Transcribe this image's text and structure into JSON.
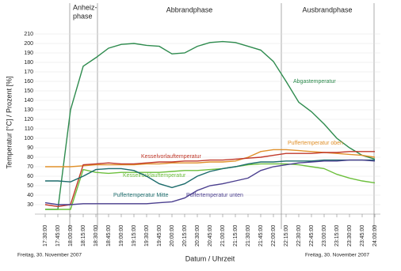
{
  "chart_data": {
    "type": "line",
    "phases": [
      [
        "Anheiz-",
        "phase"
      ],
      [
        "Abbrandphase"
      ],
      [
        "Ausbrandphase"
      ]
    ],
    "xlabel": "Datum / Uhrzeit",
    "ylabel": "Temperatur [°C] / Prozent [%]",
    "date_labels": [
      "Freitag, 30. November 2007",
      "Freitag, 30. November 2007"
    ],
    "categories": [
      "17:30:00",
      "17:45:00",
      "18:00:00",
      "18:15:00",
      "18:30:00",
      "18:45:00",
      "19:00:00",
      "19:15:00",
      "19:30:00",
      "19:45:00",
      "20:00:00",
      "20:15:00",
      "20:30:00",
      "20:45:00",
      "21:00:00",
      "21:15:00",
      "21:30:00",
      "21:45:00",
      "22:00:00",
      "22:15:00",
      "22:30:00",
      "22:45:00",
      "23:00:00",
      "23:15:00",
      "23:30:00",
      "23:45:00",
      "24:00:00"
    ],
    "ylim": [
      20,
      225
    ],
    "yticks": [
      30,
      40,
      50,
      60,
      70,
      80,
      90,
      100,
      110,
      120,
      130,
      140,
      150,
      160,
      170,
      180,
      190,
      200,
      210
    ],
    "grid": true,
    "series": [
      {
        "name": "Abgastemperatur",
        "color": "#2e8b4e",
        "values": [
          25,
          25,
          130,
          176,
          185,
          195,
          199,
          200,
          198,
          197,
          189,
          190,
          197,
          201,
          202,
          201,
          197,
          193,
          181,
          160,
          138,
          128,
          115,
          100,
          90,
          82,
          78
        ]
      },
      {
        "name": "Puffertemperatur oben",
        "color": "#e0902a",
        "values": [
          70,
          70,
          70,
          71,
          72,
          72,
          72,
          72,
          73,
          73,
          74,
          74,
          74,
          75,
          75,
          76,
          80,
          86,
          88,
          88,
          87,
          86,
          85,
          84,
          83,
          82,
          80
        ]
      },
      {
        "name": "Kesselvorlauftemperatur",
        "color": "#c0392b",
        "values": [
          30,
          28,
          30,
          72,
          73,
          74,
          73,
          73,
          74,
          75,
          75,
          76,
          76,
          77,
          77,
          78,
          79,
          80,
          82,
          84,
          84,
          84,
          85,
          85,
          86,
          86,
          86
        ]
      },
      {
        "name": "Kesselrücklauftemperatur",
        "color": "#6cbf3c",
        "values": [
          25,
          25,
          25,
          67,
          64,
          63,
          64,
          64,
          64,
          64,
          65,
          66,
          66,
          67,
          68,
          70,
          72,
          73,
          73,
          73,
          72,
          70,
          68,
          62,
          58,
          55,
          53
        ]
      },
      {
        "name": "Puffertemperatur Mitte",
        "color": "#1b6b6b",
        "values": [
          55,
          55,
          54,
          60,
          67,
          68,
          68,
          66,
          60,
          52,
          48,
          52,
          60,
          65,
          68,
          70,
          73,
          75,
          75,
          76,
          76,
          76,
          77,
          77,
          77,
          77,
          77
        ]
      },
      {
        "name": "Puffertemperatur unten",
        "color": "#4b3f8f",
        "values": [
          32,
          30,
          30,
          31,
          31,
          31,
          31,
          31,
          31,
          32,
          33,
          37,
          45,
          50,
          52,
          55,
          58,
          66,
          70,
          72,
          74,
          75,
          76,
          76,
          77,
          77,
          76
        ]
      }
    ]
  }
}
